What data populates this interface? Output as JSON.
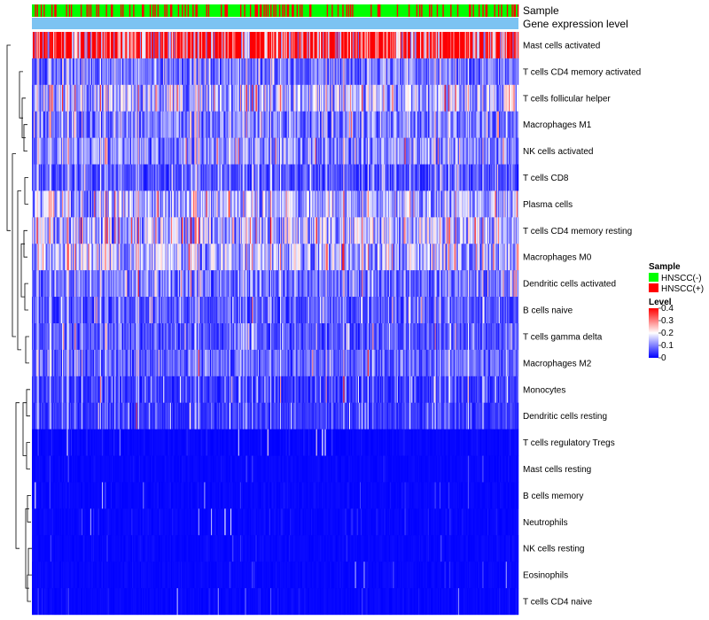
{
  "chart_data": {
    "type": "heatmap",
    "title": "",
    "annotation_tracks": [
      {
        "name": "Sample",
        "label": "Sample"
      },
      {
        "name": "Gene expression level",
        "label": "Gene expression level"
      }
    ],
    "rows": [
      "Mast cells activated",
      "T cells CD4 memory activated",
      "T cells follicular helper",
      "Macrophages M1",
      "NK cells activated",
      "T cells CD8",
      "Plasma cells",
      "T cells CD4 memory resting",
      "Macrophages M0",
      "Dendritic cells activated",
      "B cells naive",
      "T cells gamma delta",
      "Macrophages M2",
      "Monocytes",
      "Dendritic cells resting",
      "T cells regulatory  Tregs",
      "Mast cells resting",
      "B cells memory",
      "Neutrophils",
      "NK cells resting",
      "Eosinophils",
      "T cells CD4 naive"
    ],
    "row_mean_levels": [
      0.38,
      0.08,
      0.14,
      0.09,
      0.1,
      0.06,
      0.12,
      0.14,
      0.13,
      0.08,
      0.06,
      0.06,
      0.07,
      0.04,
      0.04,
      0.02,
      0.01,
      0.01,
      0.02,
      0.01,
      0.01,
      0.015
    ],
    "n_samples": 500,
    "sample_groups": [
      "HNSCC(-)",
      "HNSCC(+)"
    ],
    "sample_group_fraction_positive": 0.22,
    "legend": {
      "sample": {
        "title": "Sample",
        "entries": [
          {
            "label": "HNSCC(-)",
            "color": "#00ff00"
          },
          {
            "label": "HNSCC(+)",
            "color": "#ff0000"
          }
        ]
      },
      "level": {
        "title": "Level",
        "ticks": [
          "0.4",
          "0.3",
          "0.2",
          "0.1",
          "0"
        ],
        "tick_values": [
          0.4,
          0.3,
          0.2,
          0.1,
          0
        ],
        "range": [
          0,
          0.4
        ]
      }
    },
    "colors": {
      "low": "#0000ff",
      "mid": "#ffffff",
      "high": "#ff0000",
      "expression_track": "#7cc3f2",
      "group_negative": "#00ff00",
      "group_positive": "#ff0000"
    },
    "legend_position": "right",
    "dendrogram": "left rows"
  }
}
